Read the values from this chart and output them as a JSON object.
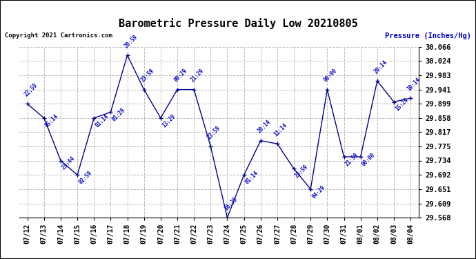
{
  "title": "Barometric Pressure Daily Low 20210805",
  "copyright": "Copyright 2021 Cartronics.com",
  "ylabel": "Pressure (Inches/Hg)",
  "background_color": "#ffffff",
  "grid_color": "#bbbbbb",
  "line_color": "#00008b",
  "text_color": "#0000cc",
  "title_color": "#000000",
  "ylim": [
    29.568,
    30.066
  ],
  "yticks": [
    29.568,
    29.609,
    29.651,
    29.692,
    29.734,
    29.775,
    29.817,
    29.858,
    29.899,
    29.941,
    29.983,
    30.024,
    30.066
  ],
  "dates": [
    "07/12",
    "07/13",
    "07/14",
    "07/15",
    "07/16",
    "07/17",
    "07/18",
    "07/19",
    "07/20",
    "07/21",
    "07/22",
    "07/23",
    "07/24",
    "07/25",
    "07/26",
    "07/27",
    "07/28",
    "07/29",
    "07/30",
    "07/31",
    "08/01",
    "08/02",
    "08/03",
    "08/04"
  ],
  "values": [
    29.899,
    29.858,
    29.734,
    29.692,
    29.858,
    29.875,
    30.041,
    29.941,
    29.858,
    29.941,
    29.941,
    29.775,
    29.568,
    29.692,
    29.792,
    29.783,
    29.71,
    29.651,
    29.941,
    29.745,
    29.745,
    29.966,
    29.905,
    29.916
  ],
  "time_labels": [
    "22:59",
    "05:14",
    "23:44",
    "02:59",
    "01:14",
    "01:29",
    "20:59",
    "23:59",
    "13:29",
    "00:29",
    "21:29",
    "23:59",
    "16:39",
    "01:14",
    "20:14",
    "11:14",
    "23:59",
    "04:29",
    "00:00",
    "21:59",
    "00:00",
    "20:14",
    "15:29",
    "19:14"
  ],
  "label_above": [
    true,
    false,
    false,
    false,
    false,
    false,
    true,
    true,
    false,
    true,
    true,
    true,
    true,
    false,
    true,
    true,
    false,
    false,
    true,
    false,
    false,
    true,
    false,
    true
  ]
}
